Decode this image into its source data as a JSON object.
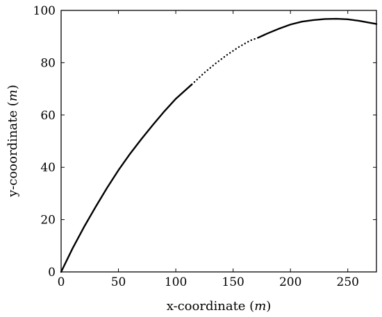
{
  "chart_data": {
    "type": "line",
    "title": "",
    "xlabel": "x-coordinate (m)",
    "ylabel": "y-cooordinate (m)",
    "xlabel_parts": {
      "text": "x-coordinate (",
      "unit": "m",
      "close": ")"
    },
    "ylabel_parts": {
      "text": "y-cooordinate (",
      "unit": "m",
      "close": ")"
    },
    "xlim": [
      0,
      275
    ],
    "ylim": [
      0,
      100
    ],
    "xticks": [
      0,
      50,
      100,
      150,
      200,
      250
    ],
    "yticks": [
      0,
      20,
      40,
      60,
      80,
      100
    ],
    "grid": false,
    "series": [
      {
        "style": "solid",
        "x": [
          0,
          10,
          20,
          30,
          40,
          50,
          60,
          70,
          80,
          90,
          100,
          114
        ],
        "y": [
          0,
          9.0,
          17.2,
          24.8,
          32.1,
          38.9,
          45.1,
          50.8,
          56.2,
          61.4,
          66.2,
          71.7
        ]
      },
      {
        "style": "dotted",
        "x": [
          114,
          125,
          135,
          145,
          155,
          165,
          172
        ],
        "y": [
          71.7,
          76.2,
          79.8,
          83.1,
          86.0,
          88.5,
          89.6
        ]
      },
      {
        "style": "solid",
        "x": [
          172,
          180,
          190,
          200,
          210,
          220,
          230,
          240,
          250,
          260,
          275
        ],
        "y": [
          89.6,
          91.2,
          93.0,
          94.6,
          95.7,
          96.3,
          96.7,
          96.8,
          96.6,
          96.0,
          94.8
        ]
      }
    ]
  }
}
